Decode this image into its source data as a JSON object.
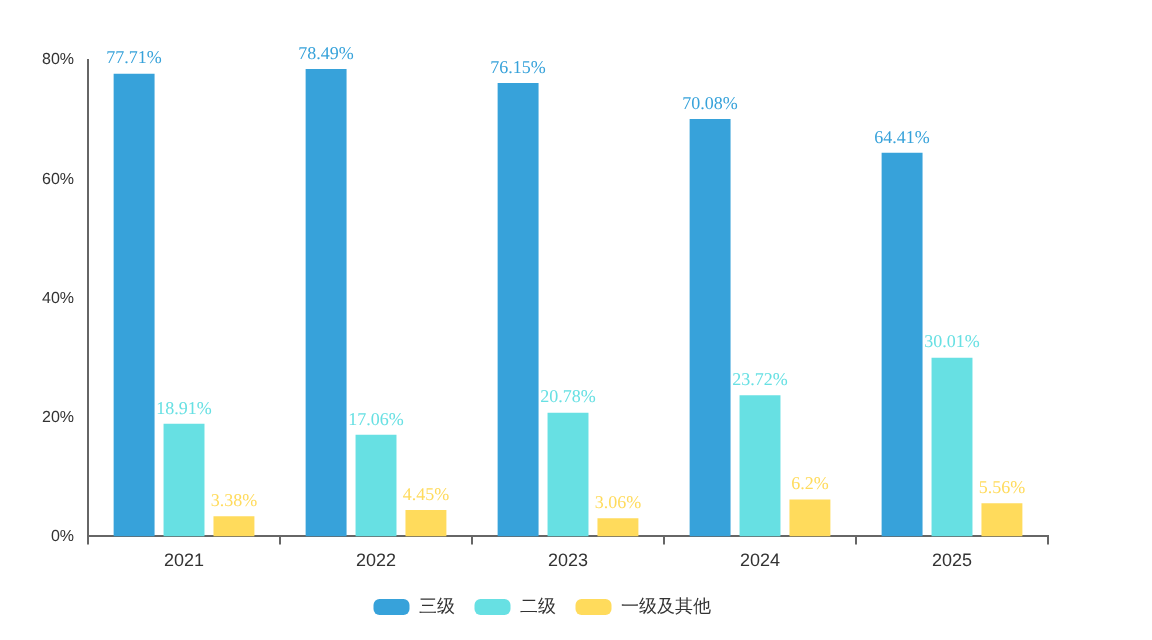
{
  "chart_data": {
    "type": "bar",
    "categories": [
      "2021",
      "2022",
      "2023",
      "2024",
      "2025"
    ],
    "series": [
      {
        "name": "三级",
        "color": "#37a2da",
        "values": [
          77.71,
          78.49,
          76.15,
          70.08,
          64.41
        ],
        "value_labels": [
          "77.71%",
          "78.49%",
          "76.15%",
          "70.08%",
          "64.41%"
        ]
      },
      {
        "name": "二级",
        "color": "#67e0e3",
        "values": [
          18.91,
          17.06,
          20.78,
          23.72,
          30.01
        ],
        "value_labels": [
          "18.91%",
          "17.06%",
          "20.78%",
          "23.72%",
          "30.01%"
        ]
      },
      {
        "name": "一级及其他",
        "color": "#ffdb5c",
        "values": [
          3.38,
          4.45,
          3.06,
          6.2,
          5.56
        ],
        "value_labels": [
          "3.38%",
          "4.45%",
          "3.06%",
          "6.2%",
          "5.56%"
        ]
      }
    ],
    "ylim": [
      0,
      80
    ],
    "yticks": [
      {
        "value": 0,
        "label": "0%"
      },
      {
        "value": 20,
        "label": "20%"
      },
      {
        "value": 40,
        "label": "40%"
      },
      {
        "value": 60,
        "label": "60%"
      },
      {
        "value": 80,
        "label": "80%"
      }
    ],
    "grid": false,
    "legend": "bottom"
  }
}
